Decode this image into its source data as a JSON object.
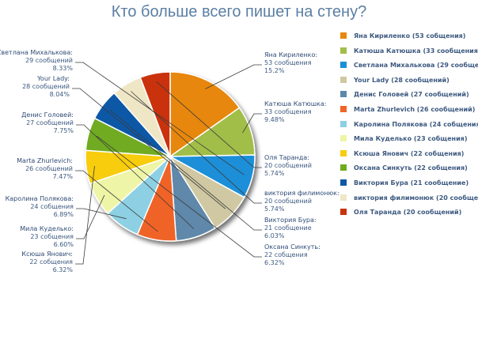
{
  "chart_data": {
    "type": "pie",
    "title": "Кто больше всего пишет на стену?",
    "slices": [
      {
        "name": "Яна Кириленко",
        "value": 53,
        "count_text": "53 сообщения",
        "percent": "15.2%",
        "legend": "Яна Кириленко (53 собщения)",
        "color": "#e8870f"
      },
      {
        "name": "Катюша Катюшка",
        "value": 33,
        "count_text": "33 сообщения",
        "percent": "9.48%",
        "legend": "Катюша Катюшка (33 сообщения)",
        "color": "#a1be4a"
      },
      {
        "name": "Светлана Михалькова",
        "value": 29,
        "count_text": "29 сообщений",
        "percent": "8.33%",
        "legend": "Светлана Михалькова (29 сообщений)",
        "color": "#1a8fd8"
      },
      {
        "name": "Your Lady",
        "value": 28,
        "count_text": "28 сообщений",
        "percent": "8.04%",
        "legend": "Your Lady (28 сообщений)",
        "color": "#cfc8a2"
      },
      {
        "name": "Денис Головей",
        "value": 27,
        "count_text": "27 сообщений",
        "percent": "7.75%",
        "legend": "Денис Головей (27 сообщений)",
        "color": "#5e88aa"
      },
      {
        "name": "Marta Zhurlevich",
        "value": 26,
        "count_text": "26 сообщений",
        "percent": "7.47%",
        "legend": "Marta Zhurlevich (26 сообщений)",
        "color": "#f06426"
      },
      {
        "name": "Каролина Полякова",
        "value": 24,
        "count_text": "24 собщения",
        "percent": "6.89%",
        "legend": "Каролина Полякова (24 собщения)",
        "color": "#8dd0e3"
      },
      {
        "name": "Мила Куделько",
        "value": 23,
        "count_text": "23 собщения",
        "percent": "6.60%",
        "legend": "Мила Куделько (23 собщения)",
        "color": "#eef5a6"
      },
      {
        "name": "Ксюша Янович",
        "value": 22,
        "count_text": "22 собщения",
        "percent": "6.32%",
        "legend": "Ксюша Янович (22 собщения)",
        "color": "#f7cd0d"
      },
      {
        "name": "Оксана Синкуть",
        "value": 22,
        "count_text": "22 собщения",
        "percent": "6.32%",
        "legend": "Оксана Синкуть (22 собщения)",
        "color": "#6fab20"
      },
      {
        "name": "Виктория Бура",
        "value": 21,
        "count_text": "21 сообщение",
        "percent": "6.03%",
        "legend": "Виктория Бура (21 сообщение)",
        "color": "#0e58a6"
      },
      {
        "name": "виктория филимонюк",
        "value": 20,
        "count_text": "20 сообщений",
        "percent": "5.74%",
        "legend": "виктория филимонюк (20 сообщений)",
        "color": "#efe6c6"
      },
      {
        "name": "Оля Таранда",
        "value": 20,
        "count_text": "20 сообщений",
        "percent": "5.74%",
        "legend": "Оля Таранда (20 сообщений)",
        "color": "#c9330d"
      }
    ]
  }
}
